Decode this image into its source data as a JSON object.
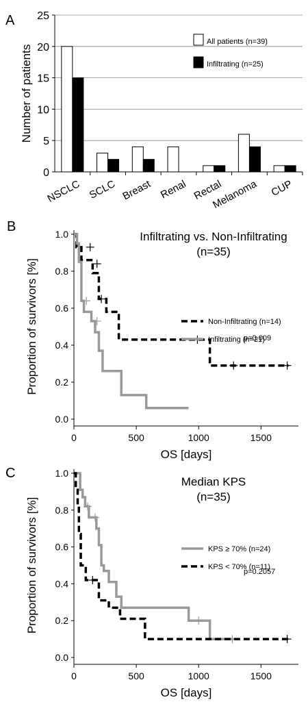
{
  "chart_data": [
    {
      "panel": "A",
      "type": "bar",
      "ylabel": "Number of patients",
      "ylim": [
        0,
        25
      ],
      "yticks": [
        0,
        5,
        10,
        15,
        20,
        25
      ],
      "grid": true,
      "categories": [
        "NSCLC",
        "SCLC",
        "Breast",
        "Renal",
        "Rectal",
        "Melanoma",
        "CUP"
      ],
      "series": [
        {
          "name": "All patients (n=39)",
          "values": [
            20,
            3,
            4,
            4,
            1,
            6,
            1
          ],
          "color": "#ffffff"
        },
        {
          "name": "Infiltrating (n=25)",
          "values": [
            15,
            2,
            2,
            0,
            1,
            4,
            1
          ],
          "color": "#000000"
        }
      ],
      "legend_position": "top-right"
    },
    {
      "panel": "B",
      "type": "line",
      "title": "Infiltrating vs. Non-Infiltrating",
      "subtitle": "(n=35)",
      "xlabel": "OS [days]",
      "ylabel": "Proportion of survivors [%]",
      "xlim": [
        0,
        1800
      ],
      "ylim": [
        0,
        1.0
      ],
      "xticks": [
        0,
        500,
        1000,
        1500
      ],
      "yticks": [
        "0.0",
        "0.2",
        "0.4",
        "0.6",
        "0.8",
        "1.0"
      ],
      "annotation": "p=0.009",
      "legend_position": "right",
      "series": [
        {
          "name": "Non-Infiltrating (n=14)",
          "color": "#000000",
          "dash": true,
          "x": [
            0,
            20,
            20,
            60,
            60,
            150,
            150,
            200,
            200,
            260,
            260,
            360,
            360,
            1090,
            1090,
            1720
          ],
          "y": [
            1.0,
            1.0,
            0.93,
            0.93,
            0.86,
            0.86,
            0.79,
            0.79,
            0.65,
            0.65,
            0.58,
            0.58,
            0.43,
            0.43,
            0.29,
            0.29
          ],
          "censors": [
            [
              130,
              0.93
            ],
            [
              185,
              0.84
            ],
            [
              220,
              0.65
            ],
            [
              990,
              0.43
            ],
            [
              1280,
              0.29
            ],
            [
              1710,
              0.29
            ]
          ]
        },
        {
          "name": "Infiltrating (n=21)",
          "color": "#999999",
          "dash": false,
          "x": [
            0,
            25,
            25,
            40,
            40,
            60,
            60,
            80,
            80,
            140,
            140,
            170,
            170,
            200,
            200,
            230,
            230,
            380,
            380,
            580,
            580,
            920
          ],
          "y": [
            1.0,
            1.0,
            0.95,
            0.95,
            0.85,
            0.85,
            0.64,
            0.64,
            0.58,
            0.58,
            0.53,
            0.53,
            0.47,
            0.47,
            0.37,
            0.37,
            0.26,
            0.26,
            0.13,
            0.13,
            0.06,
            0.06
          ],
          "censors": [
            [
              100,
              0.64
            ],
            [
              185,
              0.53
            ]
          ]
        }
      ]
    },
    {
      "panel": "C",
      "type": "line",
      "title": "Median KPS",
      "subtitle": "(n=35)",
      "xlabel": "OS [days]",
      "ylabel": "Proportion of survivors [%]",
      "xlim": [
        0,
        1800
      ],
      "ylim": [
        0,
        1.0
      ],
      "xticks": [
        0,
        500,
        1000,
        1500
      ],
      "yticks": [
        "0.0",
        "0.2",
        "0.4",
        "0.6",
        "0.8",
        "1.0"
      ],
      "annotation": "p=0.2057",
      "legend_position": "right",
      "series": [
        {
          "name": "KPS ≥ 70% (n=24)",
          "color": "#999999",
          "dash": false,
          "x": [
            0,
            50,
            50,
            70,
            70,
            90,
            90,
            120,
            120,
            180,
            180,
            200,
            200,
            220,
            220,
            240,
            240,
            280,
            280,
            340,
            340,
            380,
            380,
            920,
            920,
            1090,
            1090,
            1280
          ],
          "y": [
            1.0,
            1.0,
            0.91,
            0.91,
            0.87,
            0.87,
            0.82,
            0.82,
            0.76,
            0.76,
            0.7,
            0.7,
            0.61,
            0.61,
            0.5,
            0.5,
            0.47,
            0.47,
            0.41,
            0.41,
            0.33,
            0.33,
            0.27,
            0.27,
            0.2,
            0.2,
            0.1,
            0.1
          ],
          "censors": [
            [
              110,
              0.82
            ],
            [
              170,
              0.76
            ],
            [
              1000,
              0.2
            ],
            [
              1270,
              0.1
            ]
          ]
        },
        {
          "name": "KPS < 70% (n=11)",
          "color": "#000000",
          "dash": true,
          "x": [
            0,
            15,
            15,
            30,
            30,
            40,
            40,
            55,
            55,
            95,
            95,
            200,
            200,
            280,
            280,
            370,
            370,
            570,
            570,
            1720
          ],
          "y": [
            1.0,
            1.0,
            0.91,
            0.91,
            0.82,
            0.82,
            0.67,
            0.67,
            0.5,
            0.5,
            0.42,
            0.42,
            0.31,
            0.31,
            0.27,
            0.27,
            0.21,
            0.21,
            0.1,
            0.1
          ],
          "censors": [
            [
              150,
              0.42
            ],
            [
              1710,
              0.1
            ]
          ]
        }
      ]
    }
  ],
  "labels": {
    "panel_a": "A",
    "panel_b": "B",
    "panel_c": "C"
  }
}
